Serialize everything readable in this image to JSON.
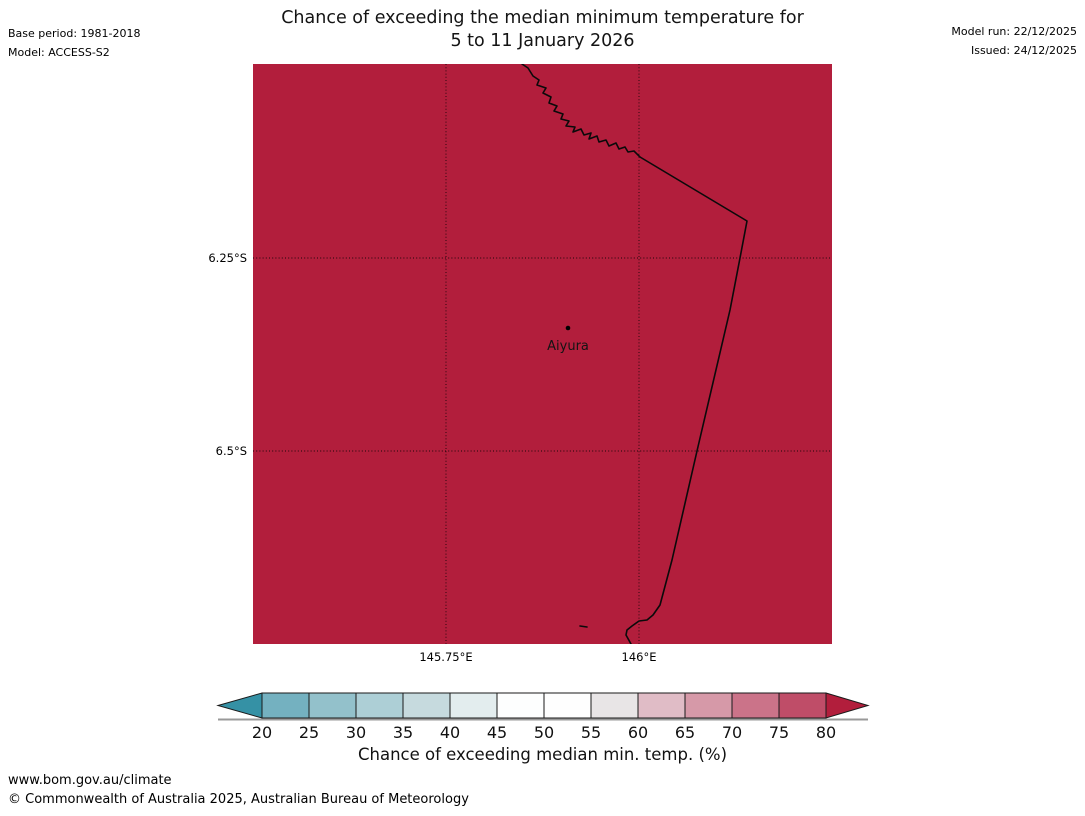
{
  "header": {
    "title_line1": "Chance of exceeding the median minimum temperature for",
    "title_line2": "5 to 11 January 2026",
    "base_period": "Base period: 1981-2018",
    "model": "Model: ACCESS-S2",
    "model_run": "Model run: 22/12/2025",
    "issued": "Issued: 24/12/2025"
  },
  "map": {
    "location_label": "Aiyura",
    "fill_color": "#b21e3c",
    "lat_ticks": [
      "6.25°S",
      "6.5°S"
    ],
    "lon_ticks": [
      "145.75°E",
      "146°E"
    ]
  },
  "chart_data": {
    "type": "heatmap",
    "title": "Chance of exceeding the median minimum temperature for 5 to 11 January 2026",
    "value_field": "Chance of exceeding median min. temp. (%)",
    "map_extent": {
      "lon": [
        145.5,
        146.25
      ],
      "lat": [
        -6.75,
        -6.0
      ]
    },
    "gridlines": {
      "lat": [
        -6.25,
        -6.5
      ],
      "lon": [
        145.75,
        146.0
      ]
    },
    "region_value": "uniform > 80% (entire visible area shaded in the over-80 dark red class)",
    "marker": {
      "name": "Aiyura",
      "lon_approx": 145.91,
      "lat_approx": -6.34
    },
    "colorbar": {
      "label": "Chance of exceeding median min. temp. (%)",
      "ticks": [
        20,
        25,
        30,
        35,
        40,
        45,
        50,
        55,
        60,
        65,
        70,
        75,
        80
      ],
      "segment_colors": [
        "#74b1c0",
        "#93c1cb",
        "#adcfd6",
        "#c6dade",
        "#e3edee",
        "#fdfefe",
        "#fefefe",
        "#e8e5e6",
        "#e0bcc6",
        "#d699a8",
        "#cb7389",
        "#bf4d68"
      ],
      "under_color": "#3591a5",
      "over_color": "#b21e3c",
      "outline_color": "#1a1a1a"
    }
  },
  "footer": {
    "url": "www.bom.gov.au/climate",
    "copyright": "© Commonwealth of Australia 2025, Australian Bureau of Meteorology"
  }
}
